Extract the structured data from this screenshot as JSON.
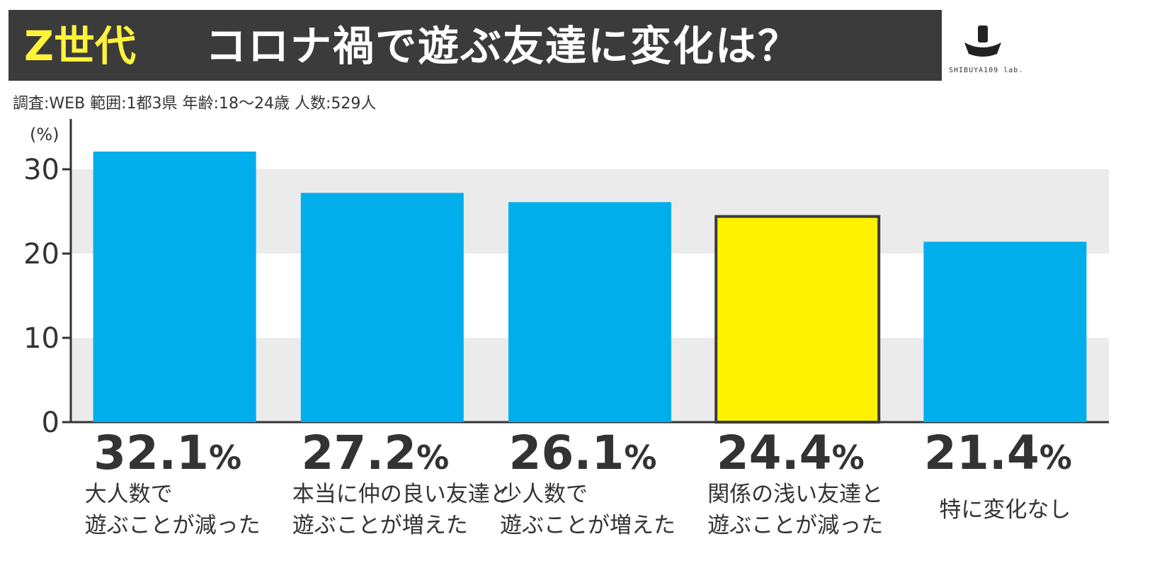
{
  "header": {
    "badge": "Z世代",
    "title": "コロナ禍で遊ぶ友達に変化は？",
    "subtitle": "調査:WEB 範囲:1都3県 年齢:18〜24歳 人数:529人",
    "logo_text": "SHIBUYA109 lab."
  },
  "colors": {
    "bar": "#00aeeb",
    "highlight": "#fff200",
    "band": "#ebebeb",
    "title_bg": "#3b3b3b",
    "badge": "#fff33a"
  },
  "chart_data": {
    "type": "bar",
    "ylabel": "(%)",
    "ylim": [
      0,
      30
    ],
    "yticks": [
      "0",
      "10",
      "20",
      "30"
    ],
    "categories": [
      "大人数で\n遊ぶことが減った",
      "本当に仲の良い友達と\n遊ぶことが増えた",
      "少人数で\n遊ぶことが増えた",
      "関係の浅い友達と\n遊ぶことが減った",
      "特に変化なし"
    ],
    "values": [
      32.1,
      27.2,
      26.1,
      24.4,
      21.4
    ],
    "value_labels": [
      "32.1%",
      "27.2%",
      "26.1%",
      "24.4%",
      "21.4%"
    ],
    "highlight_index": 3,
    "grid": "alternating bands"
  }
}
